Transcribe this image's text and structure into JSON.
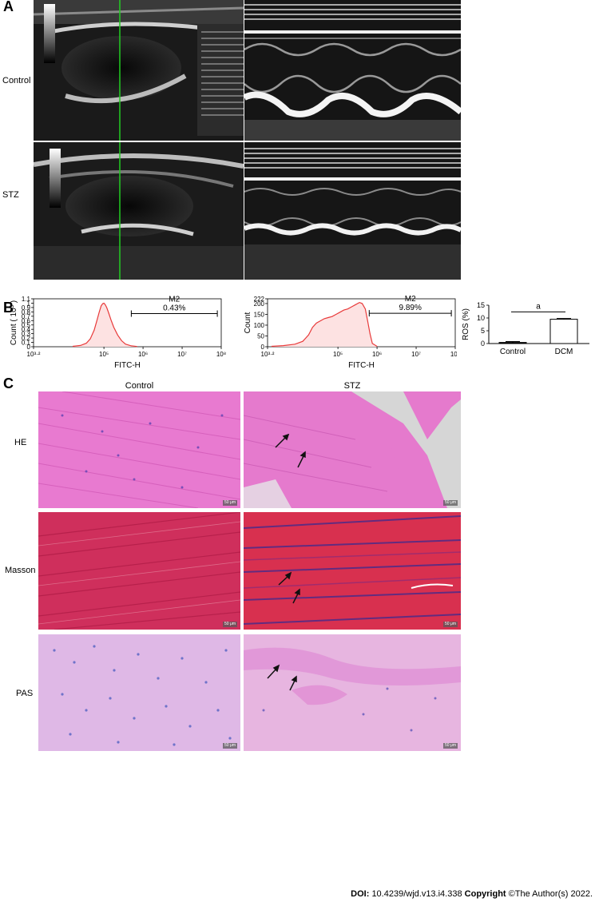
{
  "panels": {
    "A": {
      "letter": "A",
      "rows": [
        "Control",
        "STZ"
      ]
    },
    "B": {
      "letter": "B"
    },
    "C": {
      "letter": "C",
      "columns": [
        "Control",
        "STZ"
      ],
      "rows": [
        "HE",
        "Masson",
        "PAS"
      ],
      "scale_bar": "50 μm"
    }
  },
  "chart_data": [
    {
      "type": "area",
      "xlabel": "FITC-H",
      "ylabel": "Count ( 10³ )",
      "x_scale": "log10",
      "xlim_exp": [
        3.2,
        8
      ],
      "xticks": [
        "10³·²",
        "10⁵",
        "10⁶",
        "10⁷",
        "10⁸"
      ],
      "xtick_exp": [
        3.2,
        5,
        6,
        7,
        8
      ],
      "ylim": [
        0,
        1.1
      ],
      "yticks": [
        "0",
        "0.1",
        "0.2",
        "0.3",
        "0.4",
        "0.5",
        "0.6",
        "0.7",
        "0.8",
        "0.9",
        "1",
        "1.1"
      ],
      "ytick_values": [
        0,
        0.1,
        0.2,
        0.3,
        0.4,
        0.5,
        0.6,
        0.7,
        0.8,
        0.9,
        1.0,
        1.1
      ],
      "gate": {
        "label": "M2",
        "value": "0.43%",
        "from_exp": 5.7,
        "to_exp": 7.9,
        "y": 0.76
      },
      "x_exp": [
        4.2,
        4.4,
        4.55,
        4.65,
        4.75,
        4.82,
        4.88,
        4.93,
        4.97,
        5.0,
        5.03,
        5.07,
        5.12,
        5.18,
        5.25,
        5.35,
        5.45,
        5.55,
        5.7,
        5.85
      ],
      "y": [
        0.01,
        0.03,
        0.08,
        0.18,
        0.38,
        0.6,
        0.8,
        0.94,
        0.99,
        1.0,
        0.97,
        0.9,
        0.78,
        0.62,
        0.45,
        0.27,
        0.14,
        0.06,
        0.02,
        0.005
      ]
    },
    {
      "type": "area",
      "xlabel": "FITC-H",
      "ylabel": "Count",
      "x_scale": "log10",
      "xlim_exp": [
        3.2,
        8
      ],
      "xticks": [
        "10³·²",
        "10⁵",
        "10⁶",
        "10⁷",
        "10⁸"
      ],
      "xtick_exp": [
        3.2,
        5,
        6,
        7,
        8
      ],
      "ylim": [
        0,
        222
      ],
      "yticks": [
        "0",
        "50",
        "100",
        "150",
        "200",
        "222"
      ],
      "ytick_values": [
        0,
        50,
        100,
        150,
        200,
        222
      ],
      "gate": {
        "label": "M2",
        "value": "9.89%",
        "from_exp": 5.8,
        "to_exp": 7.9,
        "y": 155
      },
      "x_exp": [
        3.3,
        3.6,
        3.9,
        4.1,
        4.25,
        4.35,
        4.45,
        4.55,
        4.65,
        4.75,
        4.85,
        4.95,
        5.05,
        5.15,
        5.25,
        5.35,
        5.45,
        5.55,
        5.62,
        5.7,
        5.76,
        5.82,
        5.88,
        6.0
      ],
      "y": [
        2,
        5,
        12,
        25,
        55,
        90,
        110,
        120,
        130,
        135,
        140,
        150,
        160,
        170,
        175,
        185,
        195,
        205,
        200,
        175,
        120,
        60,
        15,
        2
      ]
    },
    {
      "type": "bar",
      "categories": [
        "Control",
        "DCM"
      ],
      "values": [
        0.43,
        9.5
      ],
      "errors": [
        0.35,
        0.3
      ],
      "ylabel": "ROS (%)",
      "ylim": [
        0,
        15
      ],
      "yticks": [
        "0",
        "5",
        "10",
        "15"
      ],
      "ytick_values": [
        0,
        5,
        10,
        15
      ],
      "bar_fill": [
        "#000000",
        "#ffffff"
      ],
      "significance": "a"
    }
  ],
  "footer": {
    "doi_label": "DOI:",
    "doi_value": "10.4239/wjd.v13.i4.338",
    "copyright_label": "Copyright",
    "copyright_value": "©The Author(s) 2022."
  }
}
